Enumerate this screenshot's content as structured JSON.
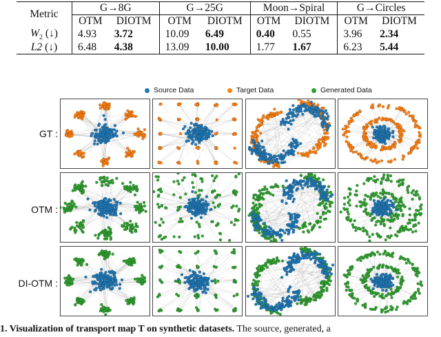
{
  "table": {
    "metric_header": "Metric",
    "groups": [
      "G→8G",
      "G→25G",
      "Moon→Spiral",
      "G→Circles"
    ],
    "subheaders": [
      "OTM",
      "DIOTM"
    ],
    "rows": [
      {
        "metric": "W",
        "metric_sub": "2",
        "arrow": "(↓)",
        "values": [
          "4.93",
          "3.72",
          "10.09",
          "6.49",
          "0.40",
          "0.55",
          "3.96",
          "2.34"
        ],
        "bold": [
          false,
          true,
          false,
          true,
          true,
          false,
          false,
          true
        ]
      },
      {
        "metric": "L2",
        "metric_sub": "",
        "arrow": "(↓)",
        "values": [
          "6.48",
          "4.38",
          "13.09",
          "10.00",
          "1.77",
          "1.67",
          "6.23",
          "5.44"
        ],
        "bold": [
          false,
          true,
          false,
          true,
          false,
          true,
          false,
          true
        ]
      }
    ]
  },
  "legend": [
    {
      "label": "Source Data",
      "color": "#1f77b4"
    },
    {
      "label": "Target Data",
      "color": "#ff7f0e"
    },
    {
      "label": "Generated Data",
      "color": "#2ca02c"
    }
  ],
  "row_labels": [
    "GT :",
    "OTM :",
    "DI-OTM :"
  ],
  "panel_names": [
    "8G",
    "25G",
    "moon-spiral",
    "circles"
  ],
  "caption": {
    "bold_part": "1. Visualization of transport map T on synthetic datasets.",
    "rest": " The source, generated, a"
  }
}
